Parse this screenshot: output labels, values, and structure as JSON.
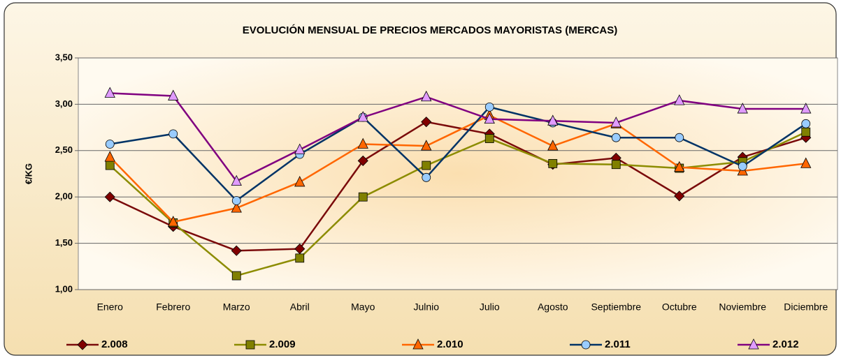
{
  "chart_data": {
    "type": "line",
    "title": "EVOLUCIÓN MENSUAL DE PRECIOS MERCADOS MAYORISTAS (MERCAS)",
    "y_label": "€/KG",
    "categories": [
      "Enero",
      "Febrero",
      "Marzo",
      "Abril",
      "Mayo",
      "Julnio",
      "Julio",
      "Agosto",
      "Septiembre",
      "Octubre",
      "Noviembre",
      "Diciembre"
    ],
    "series": [
      {
        "name": "2.008",
        "color": "#7a0a0a",
        "marker": "diamond",
        "marker_fill": "#800000",
        "values": [
          2.0,
          1.68,
          1.42,
          1.44,
          2.39,
          2.81,
          2.68,
          2.35,
          2.42,
          2.01,
          2.43,
          2.64
        ]
      },
      {
        "name": "2.009",
        "color": "#8c8c00",
        "marker": "square",
        "marker_fill": "#808000",
        "values": [
          2.34,
          1.72,
          1.15,
          1.34,
          2.0,
          2.34,
          2.63,
          2.36,
          2.35,
          2.31,
          2.38,
          2.7
        ]
      },
      {
        "name": "2.010",
        "color": "#ff6600",
        "marker": "triangle",
        "marker_fill": "#ff6600",
        "values": [
          2.43,
          1.73,
          1.88,
          2.16,
          2.57,
          2.55,
          2.88,
          2.55,
          2.79,
          2.32,
          2.28,
          2.36
        ]
      },
      {
        "name": "2.011",
        "color": "#003366",
        "marker": "circle",
        "marker_fill": "#99ccff",
        "values": [
          2.57,
          2.68,
          1.96,
          2.46,
          2.86,
          2.21,
          2.97,
          2.8,
          2.64,
          2.64,
          2.33,
          2.79
        ]
      },
      {
        "name": "2.012",
        "color": "#800080",
        "marker": "triangle",
        "marker_fill": "#e09bff",
        "values": [
          3.12,
          3.09,
          2.17,
          2.51,
          2.86,
          3.08,
          2.84,
          2.82,
          2.8,
          3.04,
          2.95,
          2.95
        ]
      }
    ],
    "ylim": [
      1.0,
      3.5
    ],
    "yticks": [
      {
        "value": 1.0,
        "label": "1,00"
      },
      {
        "value": 1.5,
        "label": "1,50"
      },
      {
        "value": 2.0,
        "label": "2,00"
      },
      {
        "value": 2.5,
        "label": "2,50"
      },
      {
        "value": 3.0,
        "label": "3,00"
      },
      {
        "value": 3.5,
        "label": "3,50"
      }
    ],
    "grid": true,
    "legend": "bottom"
  }
}
